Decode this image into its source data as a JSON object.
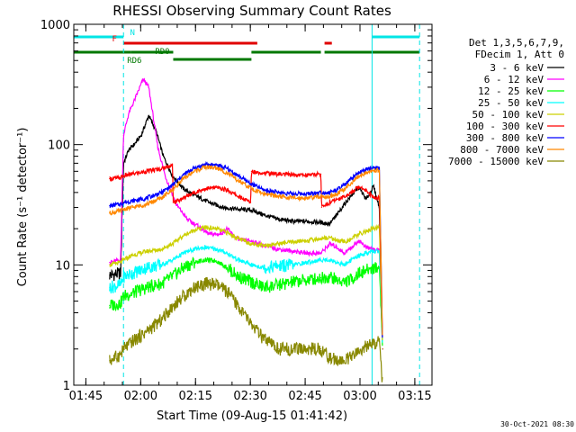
{
  "chart_data": {
    "type": "line",
    "title": "RHESSI Observing Summary Count Rates",
    "xlabel": "Start Time (09-Aug-15 01:41:42)",
    "ylabel": "Count Rate (s⁻¹ detector⁻¹)",
    "yscale": "log",
    "ylim": [
      1,
      1000
    ],
    "xlim_minutes": [
      0,
      98
    ],
    "x_unit": "minutes after 01:41:42",
    "x_ticks": [
      {
        "label": "01:45",
        "x": 3.3
      },
      {
        "label": "02:00",
        "x": 18.3
      },
      {
        "label": "02:15",
        "x": 33.3
      },
      {
        "label": "02:30",
        "x": 48.3
      },
      {
        "label": "02:45",
        "x": 63.3
      },
      {
        "label": "03:00",
        "x": 78.3
      },
      {
        "label": "03:15",
        "x": 93.3
      }
    ],
    "y_ticks": [
      {
        "label": "1",
        "y": 1
      },
      {
        "label": "10",
        "y": 10
      },
      {
        "label": "100",
        "y": 100
      },
      {
        "label": "1000",
        "y": 1000
      }
    ],
    "legend_header": [
      "Det 1,3,5,6,7,9,",
      "FDecim 1, Att 0"
    ],
    "legend_placement": "right, outside plot",
    "footer_date": "30-Oct-2021 08:30",
    "flag_bars": [
      {
        "label": "N",
        "color": "#00e5e5",
        "row": 1,
        "segments": [
          [
            0,
            13.6
          ],
          [
            81.6,
            94.6
          ]
        ]
      },
      {
        "label": "F",
        "color": "#e00000",
        "row": 2,
        "segments": [
          [
            13.6,
            50.2
          ],
          [
            68.6,
            70.6
          ]
        ]
      },
      {
        "label": "RD0",
        "color": "#007800",
        "row": 3,
        "segments": [
          [
            0,
            15.6
          ],
          [
            15.6,
            27.2
          ],
          [
            48.6,
            67.6
          ],
          [
            68.6,
            94.6
          ]
        ]
      },
      {
        "label": "RD6",
        "color": "#007800",
        "row": 4,
        "segments": [
          [
            27.2,
            48.6
          ]
        ]
      }
    ],
    "vlines": [
      {
        "x": 0,
        "color": "#00e5e5",
        "style": "solid"
      },
      {
        "x": 13.6,
        "color": "#00e5e5",
        "style": "dashed"
      },
      {
        "x": 81.6,
        "color": "#00e5e5",
        "style": "solid"
      },
      {
        "x": 94.6,
        "color": "#00e5e5",
        "style": "dashed"
      }
    ],
    "series": [
      {
        "name": "3 - 6 keV",
        "color": "#000000",
        "x": [
          9.8,
          12.8,
          13.6,
          15,
          16.5,
          18.5,
          20.5,
          22.5,
          24.5,
          27,
          30,
          33,
          37,
          41,
          45,
          48.6,
          52,
          56,
          60,
          64,
          67.6,
          70,
          72,
          74,
          76,
          78,
          80,
          82,
          83.6,
          84.5
        ],
        "y": [
          8.2,
          8.5,
          70,
          90,
          100,
          120,
          175,
          130,
          80,
          55,
          43,
          38,
          33,
          30,
          29,
          28.5,
          26,
          24,
          23,
          23,
          22.5,
          22,
          26,
          32,
          38,
          44,
          35,
          45,
          30,
          2
        ]
      },
      {
        "name": "6 - 12 keV",
        "color": "#ff00ff",
        "x": [
          9.8,
          12.8,
          13.6,
          15,
          17,
          19,
          20.5,
          21.5,
          23,
          25,
          28,
          31,
          34,
          37,
          40,
          42,
          44,
          46,
          48.6,
          52,
          56,
          60,
          64,
          67.6,
          70,
          72,
          74,
          76,
          78,
          80,
          82,
          83.6,
          84.5
        ],
        "y": [
          10.5,
          11,
          120,
          180,
          250,
          350,
          300,
          190,
          95,
          55,
          32,
          24,
          21,
          18,
          18,
          20,
          17,
          16,
          15.8,
          14.5,
          13.5,
          13,
          12.5,
          12.5,
          15,
          14,
          12.5,
          14,
          16,
          14,
          13.5,
          13,
          2
        ]
      },
      {
        "name": "12 - 25 keV",
        "color": "#00ff00",
        "x": [
          9.8,
          12.8,
          13.6,
          16,
          20,
          24,
          27,
          30,
          33,
          36,
          39,
          42,
          45,
          48.6,
          52,
          56,
          60,
          64,
          67.6,
          70,
          72,
          74,
          76,
          78,
          80,
          82,
          83.6,
          84.5
        ],
        "y": [
          4.6,
          4.8,
          5.5,
          5.8,
          6.5,
          7.0,
          8.0,
          9.5,
          10.5,
          11,
          10.8,
          9.5,
          8.0,
          7.2,
          6.5,
          6.8,
          7.2,
          7.5,
          7.8,
          8.0,
          7.5,
          7.2,
          7.6,
          8.5,
          9.0,
          9.5,
          9.5,
          2
        ]
      },
      {
        "name": "25 - 50 keV",
        "color": "#00ffff",
        "x": [
          9.8,
          12.8,
          13.6,
          16,
          20,
          24,
          27,
          30,
          33,
          36,
          39,
          42,
          45,
          48.6,
          52,
          56,
          60,
          64,
          67.6,
          70,
          72,
          74,
          76,
          78,
          80,
          82,
          83.6,
          84.5
        ],
        "y": [
          6.5,
          6.8,
          8.0,
          8.5,
          9.5,
          10,
          11,
          12.5,
          13.5,
          14,
          13.5,
          12.5,
          11,
          10,
          9.5,
          9.8,
          10,
          10.5,
          11,
          11,
          10.5,
          10,
          11,
          12,
          12.5,
          13,
          13,
          2
        ]
      },
      {
        "name": "50 - 100 keV",
        "color": "#ccd000",
        "x": [
          9.8,
          12.8,
          13.6,
          16,
          20,
          24,
          27,
          30,
          33,
          36,
          39,
          42,
          45,
          48.6,
          52,
          56,
          60,
          64,
          67.6,
          70,
          72,
          74,
          76,
          78,
          80,
          82,
          83.6,
          84.5
        ],
        "y": [
          10,
          10.5,
          11,
          12,
          13,
          13.5,
          15,
          17.5,
          19.5,
          20.5,
          20,
          18.5,
          16.5,
          15,
          14.5,
          15,
          15.5,
          16,
          16.5,
          17,
          16,
          15.5,
          16.5,
          18,
          19,
          20,
          20.5,
          2
        ]
      },
      {
        "name": "100 - 300 keV",
        "color": "#ff0000",
        "x": [
          9.8,
          12.8,
          13.6,
          16,
          20,
          24,
          27,
          27.2,
          30,
          33,
          36,
          39,
          42,
          45,
          48.4,
          48.6,
          52,
          56,
          60,
          64,
          67.6,
          67.8,
          70,
          72,
          74,
          76,
          78,
          80,
          82,
          83.6,
          84.5
        ],
        "y": [
          52,
          53,
          55,
          57,
          60,
          63,
          68,
          33,
          36,
          40,
          43,
          44,
          42,
          37,
          33,
          60,
          58,
          57,
          56,
          56,
          57,
          30,
          33,
          35,
          37,
          40,
          45,
          42,
          36,
          36,
          2
        ]
      },
      {
        "name": "300 - 800 keV",
        "color": "#0000ff",
        "x": [
          9.8,
          12.8,
          13.6,
          16,
          20,
          24,
          27,
          30,
          33,
          36,
          39,
          42,
          45,
          48.6,
          52,
          56,
          60,
          64,
          67.6,
          70,
          72,
          74,
          76,
          78,
          80,
          82,
          83.6,
          84.5
        ],
        "y": [
          31,
          32,
          33,
          34,
          36,
          40,
          46,
          56,
          64,
          68,
          68,
          63,
          55,
          47,
          42,
          40,
          39,
          39,
          40,
          40,
          42,
          46,
          52,
          58,
          62,
          64,
          64,
          2
        ]
      },
      {
        "name": "800 - 7000 keV",
        "color": "#ff8800",
        "x": [
          9.8,
          12.8,
          13.6,
          16,
          20,
          24,
          27,
          30,
          33,
          36,
          39,
          42,
          45,
          48.6,
          52,
          56,
          60,
          64,
          67.6,
          70,
          72,
          74,
          76,
          78,
          80,
          82,
          83.6,
          84.5
        ],
        "y": [
          27,
          28,
          29,
          30,
          32,
          36,
          42,
          52,
          60,
          65,
          64,
          58,
          50,
          43,
          39,
          37,
          36,
          36,
          37,
          37,
          39,
          43,
          48,
          54,
          59,
          61,
          61,
          2
        ]
      },
      {
        "name": "7000 - 15000 keV",
        "color": "#888800",
        "x": [
          9.8,
          12.8,
          13.6,
          16,
          20,
          24,
          27,
          30,
          33,
          36,
          39,
          42,
          45,
          48.6,
          52,
          56,
          60,
          64,
          67.6,
          70,
          72,
          74,
          76,
          78,
          80,
          82,
          83.6,
          84.5
        ],
        "y": [
          1.6,
          1.8,
          2.0,
          2.3,
          2.8,
          3.5,
          4.5,
          5.5,
          6.5,
          7.0,
          6.8,
          6.0,
          4.5,
          3.2,
          2.4,
          2.0,
          2.0,
          2.0,
          2.0,
          1.7,
          1.6,
          1.6,
          1.7,
          1.9,
          2.1,
          2.2,
          2.3,
          1
        ]
      }
    ]
  }
}
